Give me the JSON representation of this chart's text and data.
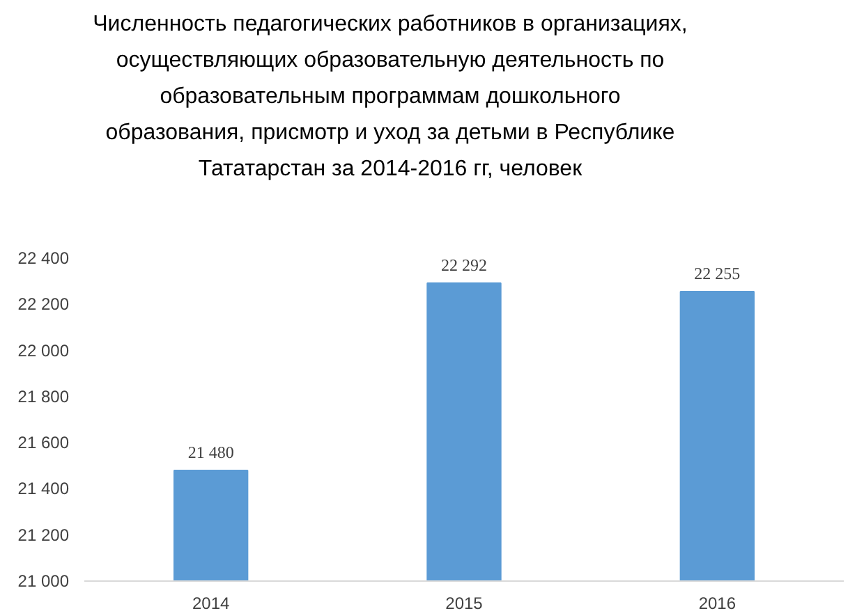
{
  "chart_data": {
    "type": "bar",
    "title": "Численность педагогических работников в организациях, осуществляющих образовательную деятельность по образовательным программам дошкольного образования, присмотр и уход за детьми в Республике Тататарстан за 2014-2016 гг, человек",
    "categories": [
      "2014",
      "2015",
      "2016"
    ],
    "values": [
      21480,
      22292,
      22255
    ],
    "color": "#5b9bd5",
    "value_labels": [
      "21 480",
      "22 292",
      "22 255"
    ],
    "ylim": [
      21000,
      22400
    ],
    "yticks": [
      {
        "value": 21000,
        "label": "21 000"
      },
      {
        "value": 21200,
        "label": "21 200"
      },
      {
        "value": 21400,
        "label": "21 400"
      },
      {
        "value": 21600,
        "label": "21 600"
      },
      {
        "value": 21800,
        "label": "21 800"
      },
      {
        "value": 22000,
        "label": "22 000"
      },
      {
        "value": 22200,
        "label": "22 200"
      },
      {
        "value": 22400,
        "label": "22 400"
      }
    ],
    "grid": false
  }
}
